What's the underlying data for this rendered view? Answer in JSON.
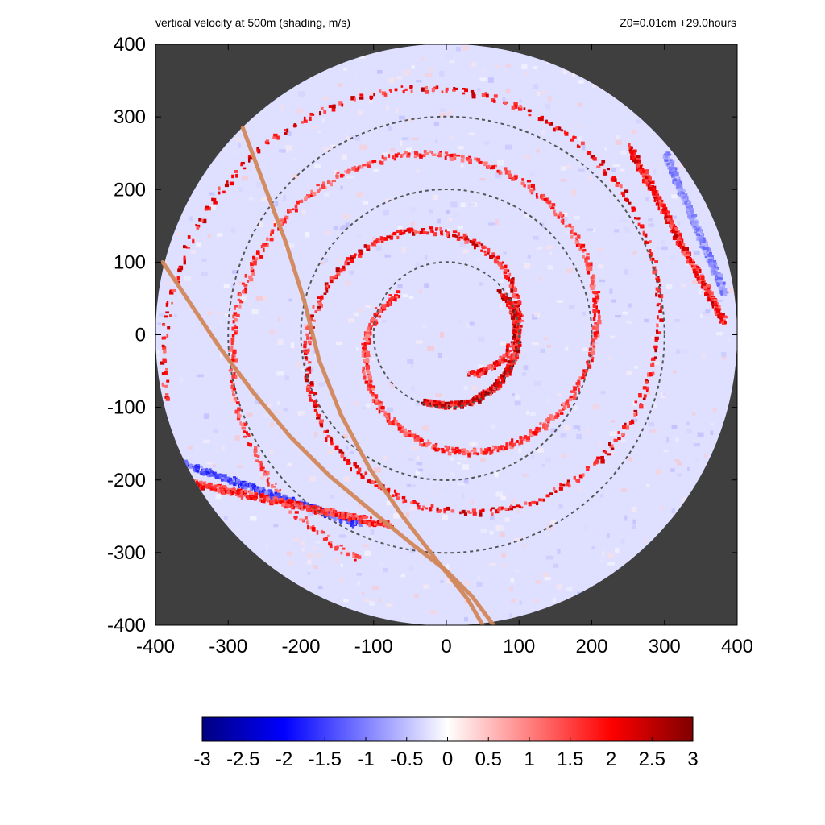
{
  "header": {
    "title": "vertical velocity at 500m (shading, m/s)",
    "run_info": "Z0=0.01cm  +29.0hours"
  },
  "chart_data": {
    "type": "heatmap",
    "title": "vertical velocity at 500m (shading, m/s)",
    "annotation": "Z0=0.01cm  +29.0hours",
    "xlabel": "",
    "ylabel": "",
    "xlim": [
      -400,
      400
    ],
    "ylim": [
      -400,
      400
    ],
    "x_ticks": [
      -400,
      -300,
      -200,
      -100,
      0,
      100,
      200,
      300,
      400
    ],
    "y_ticks": [
      -400,
      -300,
      -200,
      -100,
      0,
      100,
      200,
      300,
      400
    ],
    "x_tick_labels": [
      "-400",
      "-300",
      "-200",
      "-100",
      "0",
      "100",
      "200",
      "300",
      "400"
    ],
    "y_tick_labels": [
      "400",
      "300",
      "200",
      "100",
      "0",
      "-100",
      "-200",
      "-300",
      "-400"
    ],
    "grid": false,
    "domain_radius": 400,
    "outside_domain_color": "#3f3f3f",
    "range_rings": [
      {
        "radius": 100,
        "style": "dashed",
        "color": "#555555"
      },
      {
        "radius": 200,
        "style": "dashed",
        "color": "#555555"
      },
      {
        "radius": 300,
        "style": "dashed",
        "color": "#555555"
      }
    ],
    "tracks": [
      {
        "color": "#d2875a",
        "points": [
          [
            -280,
            285
          ],
          [
            -250,
            205
          ],
          [
            -220,
            125
          ],
          [
            -195,
            45
          ],
          [
            -175,
            -35
          ],
          [
            -145,
            -110
          ],
          [
            -105,
            -185
          ],
          [
            -60,
            -250
          ],
          [
            -10,
            -315
          ],
          [
            30,
            -365
          ],
          [
            50,
            -400
          ]
        ]
      },
      {
        "color": "#d2875a",
        "points": [
          [
            -390,
            100
          ],
          [
            -350,
            40
          ],
          [
            -310,
            -20
          ],
          [
            -265,
            -80
          ],
          [
            -215,
            -140
          ],
          [
            -160,
            -195
          ],
          [
            -100,
            -245
          ],
          [
            -45,
            -290
          ],
          [
            0,
            -325
          ],
          [
            35,
            -360
          ],
          [
            65,
            -400
          ]
        ]
      }
    ],
    "colorbar": {
      "min": -3,
      "max": 3,
      "ticks": [
        -3,
        -2.5,
        -2,
        -1.5,
        -1,
        -0.5,
        0,
        0.5,
        1,
        1.5,
        2,
        2.5,
        3
      ],
      "tick_labels": [
        "-3",
        "-2.5",
        "-2",
        "-1.5",
        "-1",
        "-0.5",
        "0",
        "0.5",
        "1",
        "1.5",
        "2",
        "2.5",
        "3"
      ],
      "stops": [
        {
          "value": -3,
          "color": "#00007f"
        },
        {
          "value": -2,
          "color": "#0000ff"
        },
        {
          "value": -1,
          "color": "#8080ff"
        },
        {
          "value": 0,
          "color": "#ffffff"
        },
        {
          "value": 1,
          "color": "#ff8080"
        },
        {
          "value": 2,
          "color": "#ff0000"
        },
        {
          "value": 3,
          "color": "#7f0000"
        }
      ]
    },
    "features": [
      {
        "kind": "spiral_band",
        "sign": "updraft",
        "peak": 2.5,
        "r_start": 60,
        "r_end": 395,
        "theta_start_deg": -60,
        "turns": 1.7
      },
      {
        "kind": "spiral_band",
        "sign": "updraft",
        "peak": 2.0,
        "r_start": 90,
        "r_end": 330,
        "theta_start_deg": 140,
        "turns": 1.3
      },
      {
        "kind": "eyewall_arc",
        "sign": "updraft",
        "peak": 2.8,
        "radius": 95,
        "theta_from_deg": -110,
        "theta_to_deg": 40
      },
      {
        "kind": "band",
        "sign": "downdraft",
        "peak": -1.8,
        "x_from": -380,
        "y_from": -170,
        "x_to": -120,
        "y_to": -260
      },
      {
        "kind": "band",
        "sign": "updraft",
        "peak": 2.2,
        "x_from": -360,
        "y_from": -200,
        "x_to": -80,
        "y_to": -260
      },
      {
        "kind": "band",
        "sign": "updraft",
        "peak": 2.4,
        "x_from": 250,
        "y_from": 260,
        "x_to": 380,
        "y_to": 20
      },
      {
        "kind": "band",
        "sign": "downdraft",
        "peak": -1.2,
        "x_from": 300,
        "y_from": 250,
        "x_to": 380,
        "y_to": 60
      }
    ]
  }
}
